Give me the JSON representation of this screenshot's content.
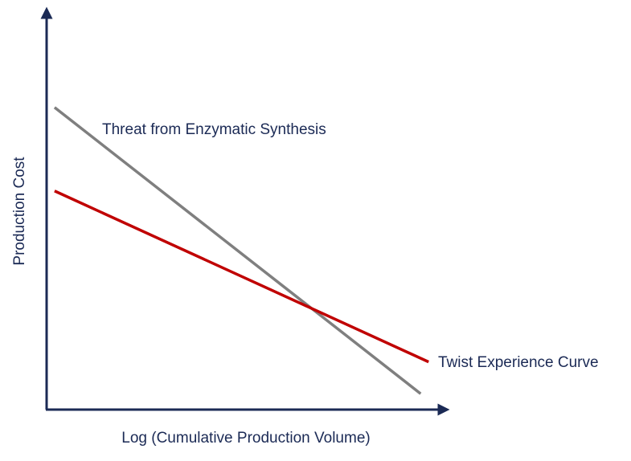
{
  "chart_data": {
    "type": "line",
    "x_label": "Log (Cumulative Production Volume)",
    "y_label": "Production Cost",
    "xlim": [
      0,
      100
    ],
    "ylim": [
      0,
      100
    ],
    "series": [
      {
        "name": "Threat from Enzymatic Synthesis",
        "color": "#7f7f7f",
        "x": [
          2,
          94
        ],
        "values": [
          76,
          4
        ]
      },
      {
        "name": "Twist Experience Curve",
        "color": "#c00000",
        "x": [
          2,
          96
        ],
        "values": [
          55,
          12
        ]
      }
    ]
  }
}
